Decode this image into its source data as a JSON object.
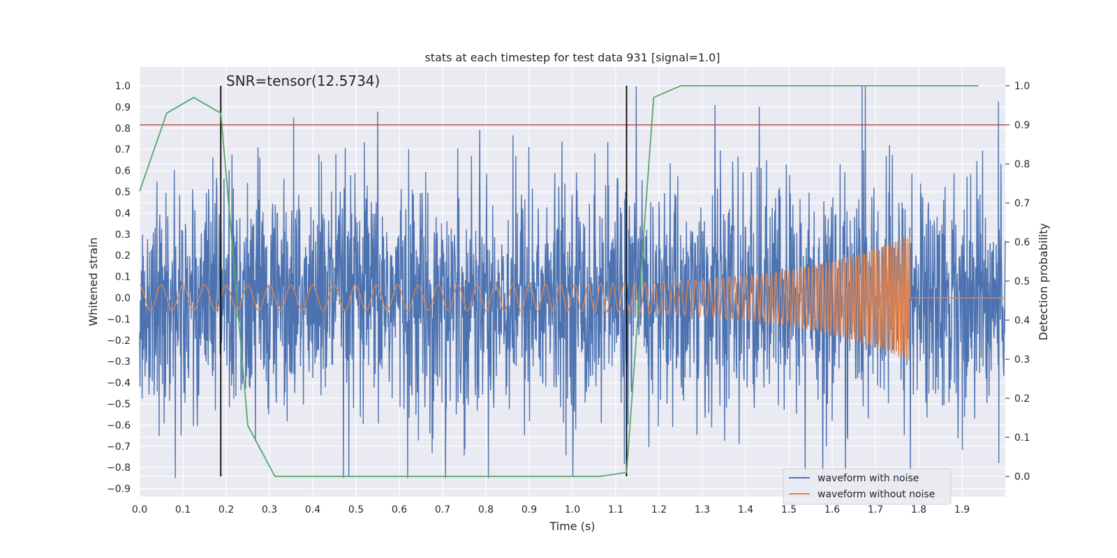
{
  "chart_data": {
    "type": "line",
    "title": "stats at each timestep for test data 931 [signal=1.0]",
    "xlabel": "Time (s)",
    "ylabel": "Whitened strain",
    "y2label": "Detection probability",
    "xlim": [
      0.0,
      2.0
    ],
    "ylim": [
      -0.93,
      1.09
    ],
    "y2lim": [
      -0.05,
      1.035
    ],
    "x_ticks": [
      "0.0",
      "0.1",
      "0.2",
      "0.3",
      "0.4",
      "0.5",
      "0.6",
      "0.7",
      "0.8",
      "0.9",
      "1.0",
      "1.1",
      "1.2",
      "1.3",
      "1.4",
      "1.5",
      "1.6",
      "1.7",
      "1.8",
      "1.9"
    ],
    "y_ticks": [
      "1.0",
      "0.9",
      "0.8",
      "0.7",
      "0.6",
      "0.5",
      "0.4",
      "0.3",
      "0.2",
      "0.1",
      "0.0",
      "−0.1",
      "−0.2",
      "−0.3",
      "−0.4",
      "−0.5",
      "−0.6",
      "−0.7",
      "−0.8",
      "−0.9"
    ],
    "y2_ticks": [
      "1.0",
      "0.9",
      "0.8",
      "0.7",
      "0.6",
      "0.5",
      "0.4",
      "0.3",
      "0.2",
      "0.1",
      "0.0"
    ],
    "annotation": "SNR=tensor(12.5734)",
    "threshold": 0.9,
    "vlines": [
      0.1875,
      1.125
    ],
    "series": [
      {
        "name": "waveform with noise",
        "color": "#4c72b0",
        "axis": "left",
        "kind": "noise",
        "amplitude_std": 0.28,
        "range": [
          -0.85,
          1.0
        ]
      },
      {
        "name": "waveform without noise",
        "color": "#dd8452",
        "axis": "left",
        "kind": "chirp",
        "merger_time": 1.78,
        "amplitude_start": 0.06,
        "amplitude_peak": 0.3
      },
      {
        "name": "detection probability",
        "color": "#55a868",
        "axis": "right",
        "x": [
          0.0,
          0.0625,
          0.125,
          0.1875,
          0.25,
          0.3125,
          0.375,
          0.4375,
          0.5,
          0.5625,
          0.625,
          0.6875,
          0.75,
          0.8125,
          0.875,
          0.9375,
          1.0,
          1.0625,
          1.125,
          1.1875,
          1.25,
          1.3125,
          1.375,
          1.4375,
          1.5,
          1.5625,
          1.625,
          1.6875,
          1.75,
          1.8125,
          1.875,
          1.9375
        ],
        "y": [
          0.73,
          0.93,
          0.97,
          0.93,
          0.13,
          0.0,
          0.0,
          0.0,
          0.0,
          0.0,
          0.0,
          0.0,
          0.0,
          0.0,
          0.0,
          0.0,
          0.0,
          0.0,
          0.01,
          0.97,
          1.0,
          1.0,
          1.0,
          1.0,
          1.0,
          1.0,
          1.0,
          1.0,
          1.0,
          1.0,
          1.0,
          1.0
        ]
      }
    ],
    "threshold_color": "#c44e52",
    "legend": [
      "waveform with noise",
      "waveform without noise"
    ],
    "legend_position": "lower-right"
  }
}
